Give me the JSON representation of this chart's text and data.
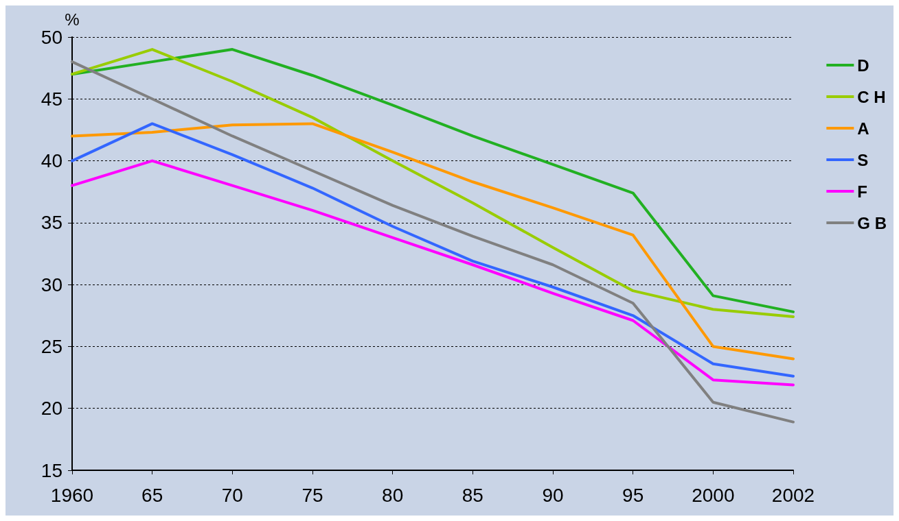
{
  "chart_data": {
    "type": "line",
    "ylabel": "%",
    "categories": [
      "1960",
      "65",
      "70",
      "75",
      "80",
      "85",
      "90",
      "95",
      "2000",
      "2002"
    ],
    "series": [
      {
        "name": "D",
        "color": "#22b022",
        "values": [
          47,
          48,
          49,
          46.9,
          44.5,
          42,
          39.7,
          37.4,
          29.1,
          27.8
        ]
      },
      {
        "name": "C H",
        "color": "#99cc00",
        "values": [
          47,
          49,
          46.4,
          43.5,
          40,
          36.6,
          33,
          29.5,
          28,
          27.4
        ]
      },
      {
        "name": "A",
        "color": "#ff9900",
        "values": [
          42,
          42.3,
          42.9,
          43,
          40.7,
          38.3,
          36.2,
          34,
          25,
          24
        ]
      },
      {
        "name": "S",
        "color": "#3366ff",
        "values": [
          40,
          43,
          40.5,
          37.8,
          34.7,
          31.9,
          29.8,
          27.5,
          23.6,
          22.6
        ]
      },
      {
        "name": "F",
        "color": "#ff00ff",
        "values": [
          38,
          40,
          38,
          36,
          33.8,
          31.6,
          29.3,
          27.1,
          22.3,
          21.9
        ]
      },
      {
        "name": "G B",
        "color": "#808080",
        "values": [
          48,
          45,
          42,
          39.2,
          36.4,
          33.9,
          31.6,
          28.5,
          20.5,
          18.9
        ]
      }
    ],
    "ylim": [
      15,
      50
    ],
    "yticks": [
      15,
      20,
      25,
      30,
      35,
      40,
      45,
      50
    ],
    "grid": "y",
    "legend": "right",
    "marker": "none",
    "line_style": "solid"
  }
}
